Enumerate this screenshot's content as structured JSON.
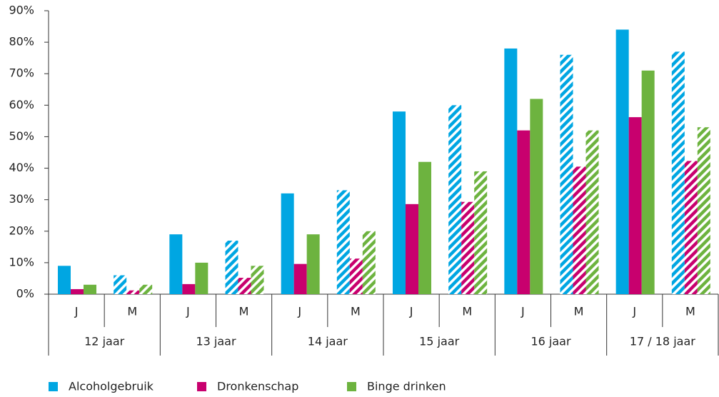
{
  "chart_data": {
    "type": "bar",
    "categories": [
      "J",
      "M",
      "J",
      "M",
      "J",
      "M",
      "J",
      "M",
      "J",
      "M",
      "J",
      "M"
    ],
    "groups": [
      "12 jaar",
      "13 jaar",
      "14 jaar",
      "15 jaar",
      "16 jaar",
      "17 / 18 jaar"
    ],
    "hatched": [
      false,
      true,
      false,
      true,
      false,
      true,
      false,
      true,
      false,
      true,
      false,
      true
    ],
    "series": [
      {
        "name": "Alcoholgebruik",
        "color": "#00a6e2",
        "values": [
          9,
          6,
          19,
          17,
          32,
          33,
          58,
          60,
          78,
          76,
          84,
          77
        ]
      },
      {
        "name": "Dronkenschap",
        "color": "#c8006e",
        "values": [
          1.6,
          1.2,
          3.2,
          5.2,
          9.6,
          11.3,
          28.6,
          29.3,
          52,
          40.5,
          56.2,
          42.3
        ]
      },
      {
        "name": "Binge drinken",
        "color": "#6db33f",
        "values": [
          3,
          3,
          10,
          9,
          19,
          20,
          42,
          39,
          62,
          52,
          71,
          53
        ]
      }
    ],
    "ylim": [
      0,
      90
    ],
    "yticks": [
      {
        "value": 0,
        "label": "0%"
      },
      {
        "value": 10,
        "label": "10%"
      },
      {
        "value": 20,
        "label": "20%"
      },
      {
        "value": 30,
        "label": "30%"
      },
      {
        "value": 40,
        "label": "40%"
      },
      {
        "value": 50,
        "label": "50%"
      },
      {
        "value": 60,
        "label": "60%"
      },
      {
        "value": 70,
        "label": "70%"
      },
      {
        "value": 80,
        "label": "80%"
      },
      {
        "value": 90,
        "label": "90%"
      }
    ],
    "legend": "bottom-left"
  }
}
